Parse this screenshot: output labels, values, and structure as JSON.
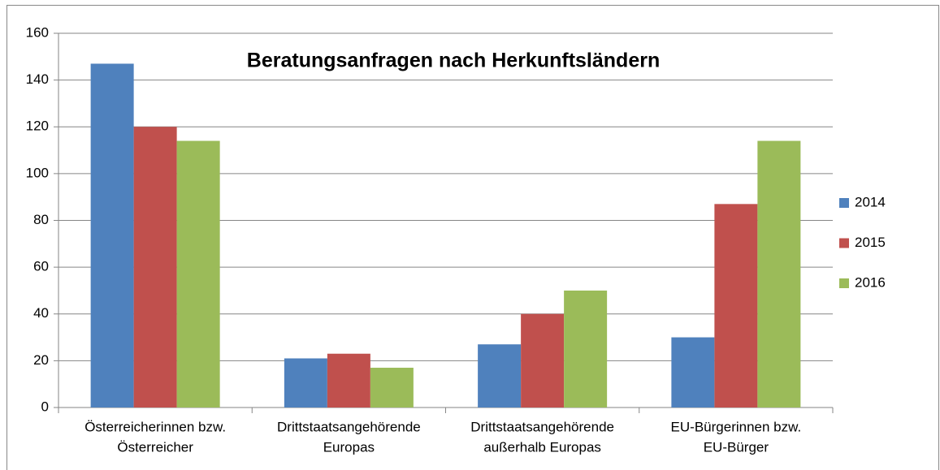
{
  "chart_data": {
    "type": "bar",
    "title": "Beratungsanfragen nach Herkunftsländern",
    "categories": [
      [
        "Österreicherinnen bzw.",
        "Österreicher"
      ],
      [
        "Drittstaatsangehörende",
        "Europas"
      ],
      [
        "Drittstaatsangehörende",
        "außerhalb Europas"
      ],
      [
        "EU-Bürgerinnen bzw.",
        "EU-Bürger"
      ]
    ],
    "series": [
      {
        "name": "2014",
        "color": "#4f81bd",
        "values": [
          147,
          21,
          27,
          30
        ]
      },
      {
        "name": "2015",
        "color": "#c0504d",
        "values": [
          120,
          23,
          40,
          87
        ]
      },
      {
        "name": "2016",
        "color": "#9bbb59",
        "values": [
          114,
          17,
          50,
          114
        ]
      }
    ],
    "ylim": [
      0,
      160
    ],
    "yticks": [
      0,
      20,
      40,
      60,
      80,
      100,
      120,
      140,
      160
    ],
    "grid": true,
    "legend": "right"
  }
}
